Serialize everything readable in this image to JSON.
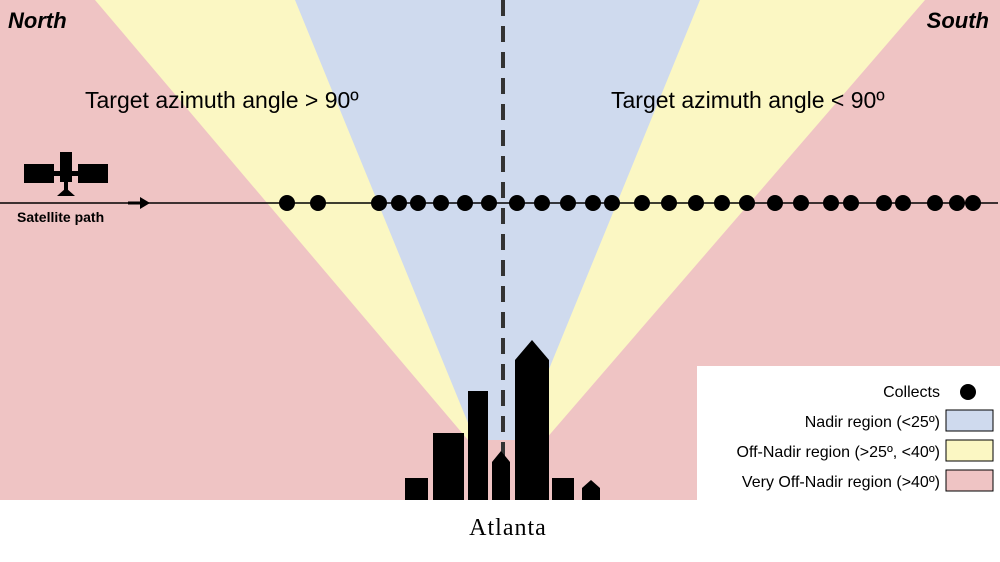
{
  "labels": {
    "north": "North",
    "south": "South",
    "azimuth_left": "Target azimuth angle > 90º",
    "azimuth_right": "Target azimuth angle < 90º",
    "satellite_path": "Satellite path",
    "city": "Atlanta"
  },
  "legend": {
    "collects": "Collects",
    "nadir": "Nadir region (<25º)",
    "off_nadir": "Off-Nadir region (>25º, <40º)",
    "very_off_nadir": "Very Off-Nadir region (>40º)"
  },
  "colors": {
    "very_off_nadir": "#efc4c4",
    "off_nadir": "#fbf7c3",
    "nadir": "#cfdaee",
    "ink": "#000000",
    "legend_bg": "#ffffff"
  },
  "icons": {
    "satellite": "satellite-icon",
    "direction": "arrow-right-icon",
    "skyline": "city-skyline-icon"
  }
}
